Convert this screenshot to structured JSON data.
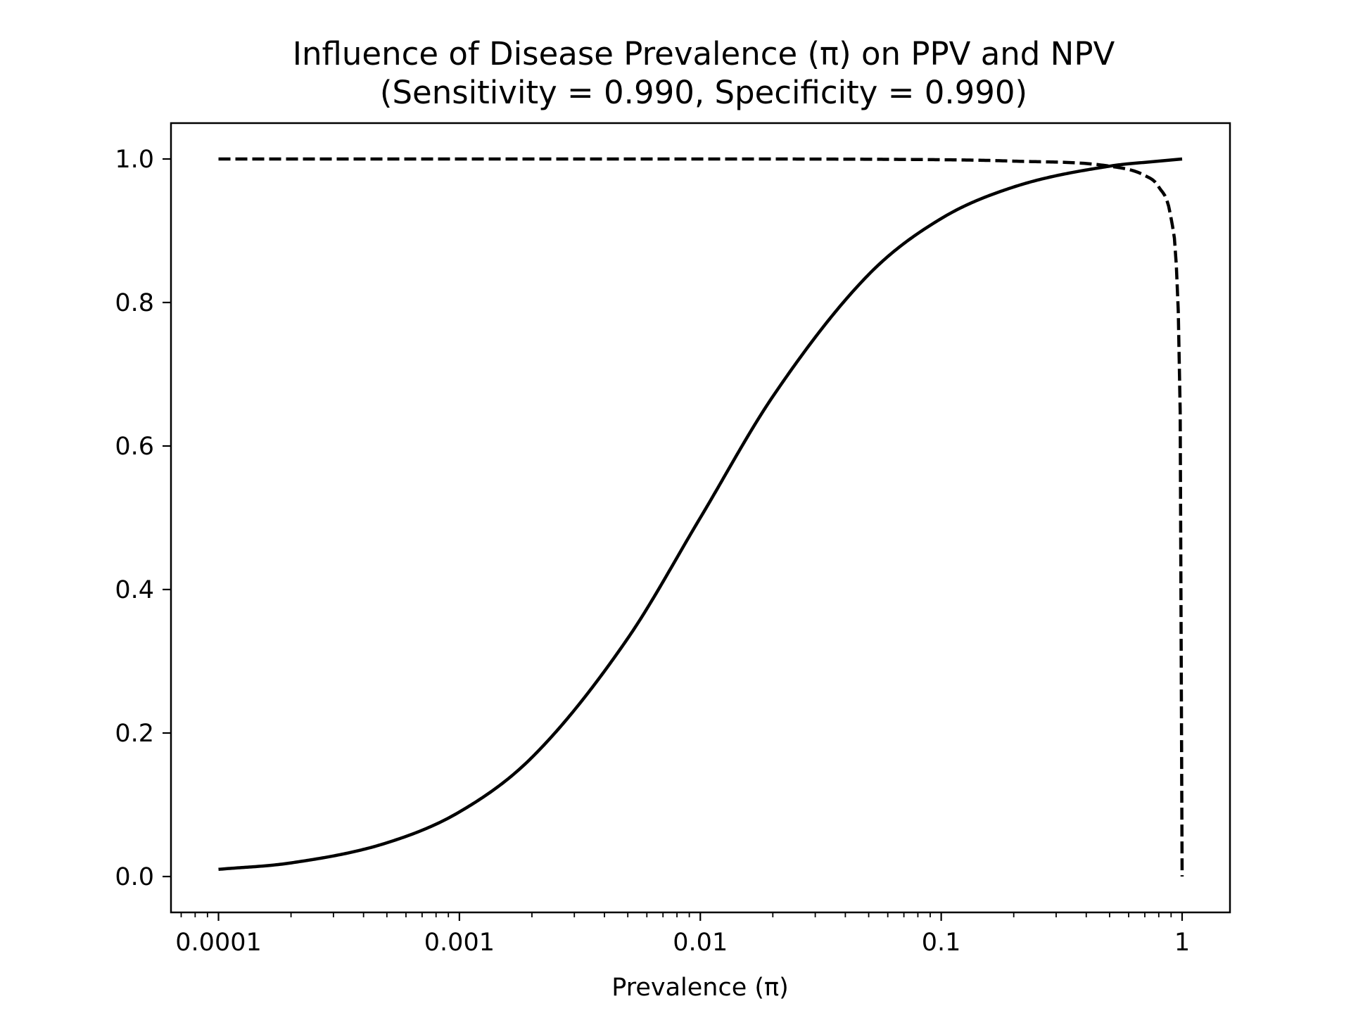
{
  "chart_data": {
    "type": "line",
    "title": "Influence of Disease Prevalence (π) on PPV and NPV",
    "subtitle": "(Sensitivity = 0.990, Specificity = 0.990)",
    "xlabel": "Prevalence (π)",
    "ylabel": "",
    "xscale": "log",
    "xlim": [
      6.35e-05,
      1.58
    ],
    "ylim": [
      -0.05,
      1.05
    ],
    "xticks": [
      {
        "value": 0.0001,
        "label": "0.0001"
      },
      {
        "value": 0.001,
        "label": "0.001"
      },
      {
        "value": 0.01,
        "label": "0.01"
      },
      {
        "value": 0.1,
        "label": "0.1"
      },
      {
        "value": 1,
        "label": "1"
      }
    ],
    "yticks": [
      {
        "value": 0.0,
        "label": "0.0"
      },
      {
        "value": 0.2,
        "label": "0.2"
      },
      {
        "value": 0.4,
        "label": "0.4"
      },
      {
        "value": 0.6,
        "label": "0.6"
      },
      {
        "value": 0.8,
        "label": "0.8"
      },
      {
        "value": 1.0,
        "label": "1.0"
      }
    ],
    "grid": false,
    "legend": "none",
    "series": [
      {
        "style": "solid",
        "color": "#000000",
        "x": [
          0.0001,
          0.0002,
          0.0005,
          0.001,
          0.002,
          0.005,
          0.01,
          0.02,
          0.05,
          0.1,
          0.2,
          0.5,
          0.8,
          1.0
        ],
        "y": [
          0.01,
          0.019,
          0.047,
          0.09,
          0.166,
          0.332,
          0.5,
          0.669,
          0.839,
          0.917,
          0.961,
          0.99,
          0.997,
          1.0
        ]
      },
      {
        "style": "dashed",
        "color": "#000000",
        "x": [
          0.0001,
          0.001,
          0.01,
          0.1,
          0.2,
          0.5,
          0.7,
          0.8,
          0.9,
          0.95,
          0.98,
          0.99,
          0.995,
          1.0
        ],
        "y": [
          1.0,
          1.0,
          1.0,
          0.999,
          0.997,
          0.99,
          0.977,
          0.961,
          0.917,
          0.839,
          0.669,
          0.5,
          0.332,
          0.0
        ]
      }
    ]
  }
}
